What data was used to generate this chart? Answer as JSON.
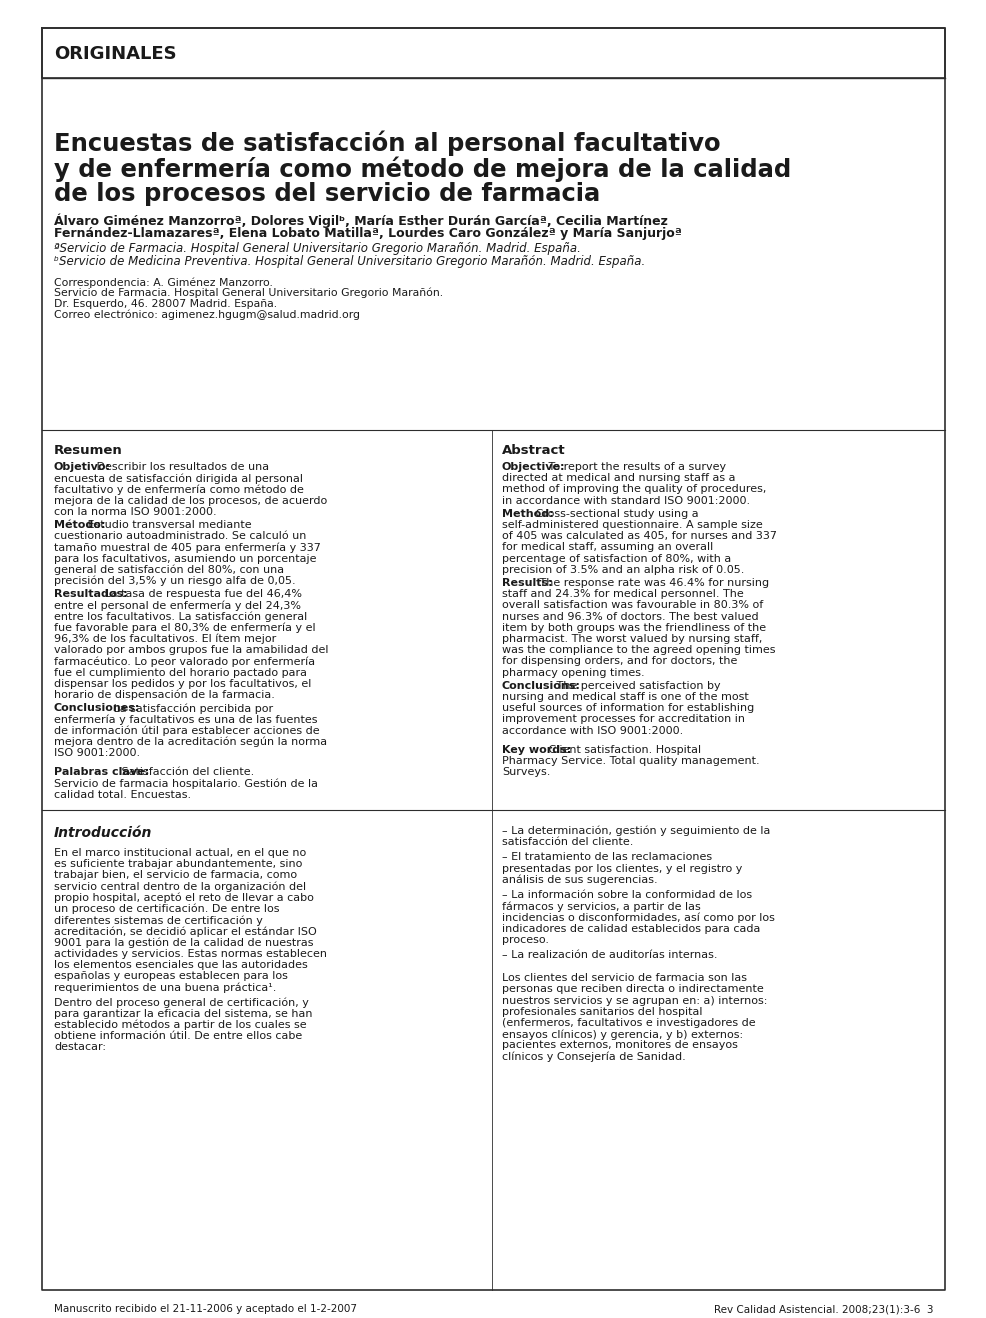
{
  "bg_color": "#ffffff",
  "border_color": "#2d2d2d",
  "text_color": "#1a1a1a",
  "section_label": "ORIGINALES",
  "title_line1": "Encuestas de satisfacción al personal facultativo",
  "title_line2": "y de enfermería como método de mejora de la calidad",
  "title_line3": "de los procesos del servicio de farmacia",
  "authors_line1": "Álvaro Giménez Manzorroª, Dolores Vigilᵇ, María Esther Durán Garcíaª, Cecilia Martínez",
  "authors_line2": "Fernández-Llamazaresª, Elena Lobato Matillaª, Lourdes Caro Gonzálezª y María Sanjurjoª",
  "affil_a": "ªServicio de Farmacia. Hospital General Universitario Gregorio Marañón. Madrid. España.",
  "affil_b": "ᵇServicio de Medicina Preventiva. Hospital General Universitario Gregorio Marañón. Madrid. España.",
  "corr_label": "Correspondencia: A. Giménez Manzorro.",
  "corr_line2": "Servicio de Farmacia. Hospital General Universitario Gregorio Marañón.",
  "corr_line3": "Dr. Esquerdo, 46. 28007 Madrid. España.",
  "corr_line4": "Correo electrónico: agimenez.hgugm@salud.madrid.org",
  "resumen_title": "Resumen",
  "resumen_obj_label": "Objetivo:",
  "resumen_obj_text": " Describir los resultados de una encuesta de satisfacción dirigida al personal facultativo y de enfermería como método de mejora de la calidad de los procesos, de acuerdo con la norma ISO 9001:2000.",
  "resumen_met_label": "Método:",
  "resumen_met_text": " Estudio transversal mediante cuestionario autoadministrado. Se calculó un tamaño muestral de 405 para enfermería y 337 para los facultativos, asumiendo un porcentaje general de satisfacción del 80%, con una precisión del 3,5% y un riesgo alfa de 0,05.",
  "resumen_res_label": "Resultados:",
  "resumen_res_text": " La tasa de respuesta fue del 46,4% entre el personal de enfermería y del 24,3% entre los facultativos. La satisfacción general fue favorable para el 80,3% de enfermería y el 96,3% de los facultativos. El ítem mejor valorado por ambos grupos fue la amabilidad del farmacéutico. Lo peor valorado por enfermería fue el cumplimiento del horario pactado para dispensar los pedidos y por los facultativos, el horario de dispensación de la farmacia.",
  "resumen_con_label": "Conclusiones:",
  "resumen_con_text": " La satisfacción percibida por enfermería y facultativos es una de las fuentes de información útil para establecer acciones de mejora dentro de la acreditación según la norma ISO 9001:2000.",
  "resumen_pc_label": "Palabras clave:",
  "resumen_pc_text": " Satisfacción del cliente. Servicio de farmacia hospitalario. Gestión de la calidad total. Encuestas.",
  "abstract_title": "Abstract",
  "abstract_obj_label": "Objective:",
  "abstract_obj_text": " To report the results of a survey directed at medical and nursing staff as a method of improving the quality of procedures, in accordance with standard ISO 9001:2000.",
  "abstract_met_label": "Method:",
  "abstract_met_text": " Cross-sectional study using a self-administered questionnaire. A sample size of 405 was calculated as 405, for nurses and 337 for medical staff, assuming an overall percentage of satisfaction of 80%, with a precision of 3.5% and an alpha risk of 0.05.",
  "abstract_res_label": "Results:",
  "abstract_res_text": " The response rate was 46.4% for nursing staff and 24.3% for medical personnel. The overall satisfaction was favourable in 80.3% of nurses and 96.3% of doctors. The best valued item by both groups was the friendliness of the pharmacist. The worst valued by nursing staff, was the compliance to the agreed opening times for dispensing orders, and for doctors, the pharmacy opening times.",
  "abstract_con_label": "Conclusions:",
  "abstract_con_text": " The perceived satisfaction by nursing and medical staff is one of the most useful sources of information for establishing improvement processes for accreditation in accordance with ISO 9001:2000.",
  "abstract_kw_label": "Key words:",
  "abstract_kw_text": " Client satisfaction. Hospital Pharmacy Service. Total quality management. Surveys.",
  "intro_title": "Introducción",
  "intro_indent": "    ",
  "intro_para1": "En el marco institucional actual, en el que no es suficiente trabajar abundantemente, sino trabajar bien, el servicio de farmacia, como servicio central dentro de la organización del propio hospital, aceptó el reto de llevar a cabo un proceso de certificación. De entre los diferentes sistemas de certificación y acreditación, se decidió aplicar el estándar ISO 9001 para la gestión de la calidad de nuestras actividades y servicios. Estas normas establecen los elementos esenciales que las autoridades españolas y europeas establecen para los requerimientos de una buena práctica¹.",
  "intro_para2": "Dentro del proceso general de certificación, y para garantizar la eficacia del sistema, se han establecido métodos a partir de los cuales se obtiene información útil. De entre ellos cabe destacar:",
  "intro_bullet1": "– La determinación, gestión y seguimiento de la satisfacción del cliente.",
  "intro_bullet2": "– El tratamiento de las reclamaciones presentadas por los clientes, y el registro y análisis de sus sugerencias.",
  "intro_bullet3": "– La información sobre la conformidad de los fármacos y servicios, a partir de las incidencias o disconformidades, así como por los indicadores de calidad establecidos para cada proceso.",
  "intro_bullet4": "– La realización de auditorías internas.",
  "intro_para3": "Los clientes del servicio de farmacia son las personas que reciben directa o indirectamente nuestros servicios y se agrupan en: a) internos: profesionales sanitarios del hospital (enfermeros, facultativos e investigadores de ensayos clínicos) y gerencia, y b) externos: pacientes externos, monitores de ensayos clínicos y Consejería de Sanidad.",
  "footer_left": "Manuscrito recibido el 21-11-2006 y aceptado el 1-2-2007",
  "footer_right": "Rev Calidad Asistencial. 2008;23(1):3-6  3"
}
